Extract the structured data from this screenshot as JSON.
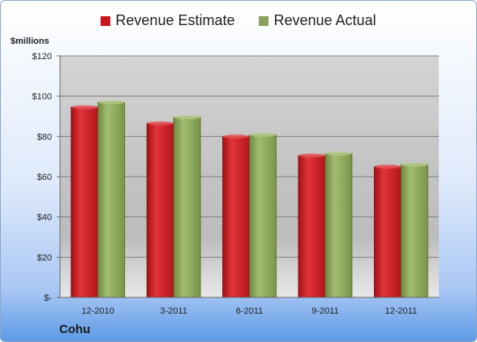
{
  "legend": {
    "estimate_label": "Revenue Estimate",
    "actual_label": "Revenue Actual"
  },
  "unit_label": "$millions",
  "footer_title": "Cohu",
  "colors": {
    "estimate": "#c8171e",
    "actual": "#8aa35a",
    "plot_bg": "#c9c9c9",
    "gridline": "#7f7f7f"
  },
  "chart_data": {
    "type": "bar",
    "categories": [
      "12-2010",
      "3-2011",
      "6-2011",
      "9-2011",
      "12-2011"
    ],
    "series": [
      {
        "name": "Revenue Estimate",
        "values": [
          94.5,
          86.5,
          80,
          70.5,
          65
        ]
      },
      {
        "name": "Revenue Actual",
        "values": [
          97,
          89.5,
          80.8,
          71.5,
          66
        ]
      }
    ],
    "ylabel": "$millions",
    "ylim": [
      0,
      120
    ],
    "yticks": [
      {
        "value": 0,
        "label": "$-"
      },
      {
        "value": 20,
        "label": "$20"
      },
      {
        "value": 40,
        "label": "$40"
      },
      {
        "value": 60,
        "label": "$60"
      },
      {
        "value": 80,
        "label": "$80"
      },
      {
        "value": 100,
        "label": "$100"
      },
      {
        "value": 120,
        "label": "$120"
      }
    ],
    "grid": true,
    "legend_position": "top"
  }
}
